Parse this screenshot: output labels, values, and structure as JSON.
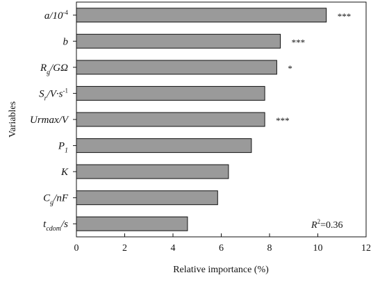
{
  "chart_data": {
    "type": "bar",
    "orientation": "horizontal",
    "xlabel": "Relative importance (%)",
    "ylabel": "Variables",
    "xlim": [
      0,
      12
    ],
    "xticks": [
      "0",
      "2",
      "4",
      "6",
      "8",
      "10",
      "12"
    ],
    "grid": false,
    "bar_color": "#9a9a9a",
    "annotation": {
      "r2_label": "R",
      "r2_sup": "2",
      "r2_value": "=0.36"
    },
    "categories": [
      {
        "main": "a/10",
        "sub": "",
        "sup": "-4",
        "rest": "",
        "value": 10.35,
        "significance": "***"
      },
      {
        "main": "b",
        "sub": "",
        "sup": "",
        "rest": "",
        "value": 8.45,
        "significance": "***"
      },
      {
        "main": "R",
        "sub": "g",
        "sup": "",
        "rest": "/GΩ",
        "value": 8.3,
        "significance": "*"
      },
      {
        "main": "S",
        "sub": "r",
        "sup": "-1",
        "rest": "/V·s",
        "value": 7.8,
        "significance": ""
      },
      {
        "main": "Urmax/V",
        "sub": "",
        "sup": "",
        "rest": "",
        "value": 7.8,
        "significance": "***"
      },
      {
        "main": "P",
        "sub": "1",
        "sup": "",
        "rest": "",
        "value": 7.25,
        "significance": ""
      },
      {
        "main": "K",
        "sub": "",
        "sup": "",
        "rest": "",
        "value": 6.3,
        "significance": ""
      },
      {
        "main": "C",
        "sub": "g",
        "sup": "",
        "rest": "/nF",
        "value": 5.85,
        "significance": ""
      },
      {
        "main": "t",
        "sub": "cdom",
        "sup": "",
        "rest": "/s",
        "value": 4.6,
        "significance": ""
      }
    ]
  }
}
